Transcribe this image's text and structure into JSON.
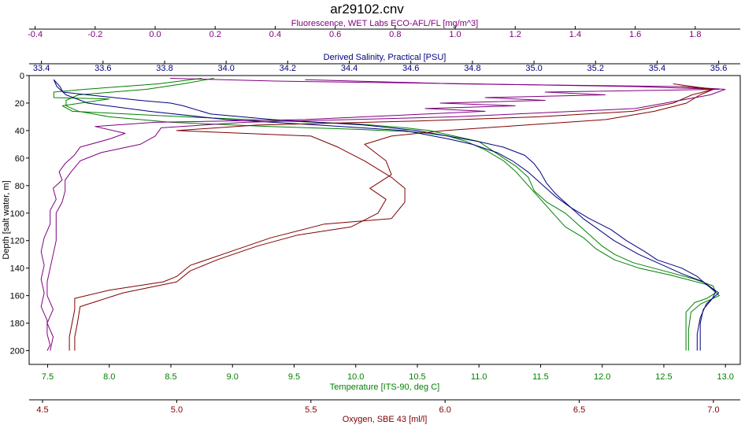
{
  "chart_data": {
    "type": "line",
    "title": "ar29102.cnv",
    "y_axis": {
      "label": "Depth [salt water, m]",
      "range": [
        0,
        210
      ],
      "ticks": [
        0,
        20,
        40,
        60,
        80,
        100,
        120,
        140,
        160,
        180,
        200
      ],
      "inverted": true,
      "color": "#000000"
    },
    "x_axes": [
      {
        "id": "fluorescence",
        "position": "top-outer",
        "label": "Fluorescence, WET Labs ECO-AFL/FL [mg/m^3]",
        "range": [
          -0.42,
          1.95
        ],
        "ticks": [
          -0.4,
          -0.2,
          0.0,
          0.2,
          0.4,
          0.6,
          0.8,
          1.0,
          1.2,
          1.4,
          1.6,
          1.8
        ],
        "tick_labels": [
          "-0.4",
          "-0.2",
          "0.0",
          "0.2",
          "0.4",
          "0.6",
          "0.8",
          "1.0",
          "1.2",
          "1.4",
          "1.6",
          "1.8"
        ],
        "color": "#800080"
      },
      {
        "id": "salinity",
        "position": "top-inner",
        "label": "Derived Salinity, Practical [PSU]",
        "range": [
          33.36,
          35.67
        ],
        "ticks": [
          33.4,
          33.6,
          33.8,
          34.0,
          34.2,
          34.4,
          34.6,
          34.8,
          35.0,
          35.2,
          35.4,
          35.6
        ],
        "tick_labels": [
          "33.4",
          "33.6",
          "33.8",
          "34.0",
          "34.2",
          "34.4",
          "34.6",
          "34.8",
          "35.0",
          "35.2",
          "35.4",
          "35.6"
        ],
        "color": "#000080"
      },
      {
        "id": "temperature",
        "position": "bottom-inner",
        "label": "Temperature [ITS-90, deg C]",
        "range": [
          7.35,
          13.12
        ],
        "ticks": [
          7.5,
          8.0,
          8.5,
          9.0,
          9.5,
          10.0,
          10.5,
          11.0,
          11.5,
          12.0,
          12.5,
          13.0
        ],
        "tick_labels": [
          "7.5",
          "8.0",
          "8.5",
          "9.0",
          "9.5",
          "10.0",
          "10.5",
          "11.0",
          "11.5",
          "12.0",
          "12.5",
          "13.0"
        ],
        "color": "#008000"
      },
      {
        "id": "oxygen",
        "position": "bottom-outer",
        "label": "Oxygen, SBE 43 [ml/l]",
        "range": [
          4.45,
          7.1
        ],
        "ticks": [
          4.5,
          5.0,
          5.5,
          6.0,
          6.5,
          7.0
        ],
        "tick_labels": [
          "4.5",
          "5.0",
          "5.5",
          "6.0",
          "6.5",
          "7.0"
        ],
        "color": "#800000"
      }
    ],
    "series": [
      {
        "axis": "temperature",
        "color": "#008000",
        "cast": "downcast",
        "points": [
          [
            8.75,
            2
          ],
          [
            8.4,
            6
          ],
          [
            7.8,
            10
          ],
          [
            7.55,
            12
          ],
          [
            7.55,
            16
          ],
          [
            8.0,
            17
          ],
          [
            7.62,
            22
          ],
          [
            7.7,
            26
          ],
          [
            8.6,
            30
          ],
          [
            9.4,
            33
          ],
          [
            10.0,
            35
          ],
          [
            10.4,
            38
          ],
          [
            10.6,
            40
          ],
          [
            10.8,
            44
          ],
          [
            11.0,
            48
          ],
          [
            11.1,
            54
          ],
          [
            11.2,
            60
          ],
          [
            11.3,
            66
          ],
          [
            11.4,
            74
          ],
          [
            11.45,
            84
          ],
          [
            11.55,
            92
          ],
          [
            11.7,
            100
          ],
          [
            11.8,
            108
          ],
          [
            11.9,
            116
          ],
          [
            12.0,
            124
          ],
          [
            12.1,
            130
          ],
          [
            12.25,
            136
          ],
          [
            12.5,
            142
          ],
          [
            12.75,
            148
          ],
          [
            12.9,
            153
          ],
          [
            12.92,
            158
          ],
          [
            12.85,
            162
          ],
          [
            12.75,
            165
          ],
          [
            12.68,
            172
          ],
          [
            12.68,
            185
          ],
          [
            12.68,
            200
          ]
        ]
      },
      {
        "axis": "temperature",
        "color": "#008000",
        "cast": "upcast",
        "points": [
          [
            12.7,
            200
          ],
          [
            12.7,
            185
          ],
          [
            12.72,
            172
          ],
          [
            12.8,
            166
          ],
          [
            12.95,
            160
          ],
          [
            12.85,
            152
          ],
          [
            12.55,
            145
          ],
          [
            12.3,
            140
          ],
          [
            12.1,
            134
          ],
          [
            11.95,
            126
          ],
          [
            11.85,
            118
          ],
          [
            11.7,
            110
          ],
          [
            11.6,
            100
          ],
          [
            11.5,
            90
          ],
          [
            11.4,
            80
          ],
          [
            11.3,
            70
          ],
          [
            11.2,
            62
          ],
          [
            11.05,
            54
          ],
          [
            10.9,
            48
          ],
          [
            10.75,
            44
          ],
          [
            10.5,
            41
          ],
          [
            10.0,
            39
          ],
          [
            9.3,
            37
          ],
          [
            8.5,
            34
          ],
          [
            8.0,
            30
          ],
          [
            7.75,
            26
          ],
          [
            7.65,
            22
          ],
          [
            7.65,
            18
          ],
          [
            7.75,
            14
          ],
          [
            8.3,
            10
          ],
          [
            8.6,
            6
          ],
          [
            8.85,
            2
          ]
        ]
      },
      {
        "axis": "salinity",
        "color": "#000080",
        "cast": "downcast",
        "points": [
          [
            33.44,
            3
          ],
          [
            33.46,
            8
          ],
          [
            33.47,
            12
          ],
          [
            33.55,
            14
          ],
          [
            33.72,
            18
          ],
          [
            33.82,
            20
          ],
          [
            33.86,
            22
          ],
          [
            33.95,
            28
          ],
          [
            34.15,
            32
          ],
          [
            34.45,
            36
          ],
          [
            34.62,
            40
          ],
          [
            34.72,
            44
          ],
          [
            34.82,
            48
          ],
          [
            34.9,
            52
          ],
          [
            34.97,
            58
          ],
          [
            35.0,
            64
          ],
          [
            35.02,
            70
          ],
          [
            35.04,
            78
          ],
          [
            35.07,
            86
          ],
          [
            35.12,
            96
          ],
          [
            35.18,
            104
          ],
          [
            35.25,
            112
          ],
          [
            35.3,
            120
          ],
          [
            35.36,
            128
          ],
          [
            35.4,
            134
          ],
          [
            35.48,
            140
          ],
          [
            35.53,
            146
          ],
          [
            35.56,
            152
          ],
          [
            35.59,
            157
          ],
          [
            35.58,
            162
          ],
          [
            35.55,
            170
          ],
          [
            35.54,
            180
          ],
          [
            35.54,
            190
          ],
          [
            35.54,
            200
          ]
        ]
      },
      {
        "axis": "salinity",
        "color": "#000080",
        "cast": "upcast",
        "points": [
          [
            35.53,
            200
          ],
          [
            35.53,
            188
          ],
          [
            35.54,
            176
          ],
          [
            35.56,
            166
          ],
          [
            35.6,
            158
          ],
          [
            35.55,
            150
          ],
          [
            35.48,
            144
          ],
          [
            35.42,
            138
          ],
          [
            35.34,
            130
          ],
          [
            35.26,
            120
          ],
          [
            35.21,
            112
          ],
          [
            35.16,
            104
          ],
          [
            35.12,
            96
          ],
          [
            35.07,
            88
          ],
          [
            35.03,
            80
          ],
          [
            34.98,
            70
          ],
          [
            34.93,
            62
          ],
          [
            34.88,
            56
          ],
          [
            34.8,
            50
          ],
          [
            34.72,
            46
          ],
          [
            34.58,
            40
          ],
          [
            34.3,
            36
          ],
          [
            34.0,
            32
          ],
          [
            33.75,
            26
          ],
          [
            33.55,
            20
          ],
          [
            33.48,
            14
          ],
          [
            33.45,
            8
          ],
          [
            33.44,
            3
          ]
        ]
      },
      {
        "axis": "fluorescence",
        "color": "#800080",
        "cast": "downcast",
        "points": [
          [
            0.05,
            2
          ],
          [
            0.4,
            4
          ],
          [
            1.05,
            6
          ],
          [
            1.6,
            8
          ],
          [
            1.88,
            10
          ],
          [
            1.3,
            12
          ],
          [
            1.5,
            14
          ],
          [
            1.1,
            16
          ],
          [
            1.3,
            18
          ],
          [
            0.95,
            20
          ],
          [
            1.2,
            22
          ],
          [
            0.9,
            24
          ],
          [
            1.1,
            26
          ],
          [
            0.7,
            30
          ],
          [
            0.5,
            32
          ],
          [
            0.0,
            34
          ],
          [
            -0.2,
            37
          ],
          [
            -0.1,
            42
          ],
          [
            -0.15,
            46
          ],
          [
            -0.25,
            52
          ],
          [
            -0.27,
            58
          ],
          [
            -0.3,
            64
          ],
          [
            -0.32,
            70
          ],
          [
            -0.31,
            76
          ],
          [
            -0.34,
            82
          ],
          [
            -0.33,
            90
          ],
          [
            -0.35,
            98
          ],
          [
            -0.35,
            108
          ],
          [
            -0.37,
            118
          ],
          [
            -0.38,
            128
          ],
          [
            -0.37,
            138
          ],
          [
            -0.38,
            148
          ],
          [
            -0.37,
            158
          ],
          [
            -0.38,
            168
          ],
          [
            -0.36,
            178
          ],
          [
            -0.36,
            188
          ],
          [
            -0.35,
            196
          ],
          [
            -0.36,
            200
          ]
        ]
      },
      {
        "axis": "fluorescence",
        "color": "#800080",
        "cast": "upcast",
        "points": [
          [
            -0.35,
            200
          ],
          [
            -0.34,
            190
          ],
          [
            -0.36,
            180
          ],
          [
            -0.34,
            170
          ],
          [
            -0.36,
            160
          ],
          [
            -0.36,
            150
          ],
          [
            -0.35,
            140
          ],
          [
            -0.34,
            130
          ],
          [
            -0.33,
            120
          ],
          [
            -0.33,
            110
          ],
          [
            -0.33,
            100
          ],
          [
            -0.31,
            92
          ],
          [
            -0.3,
            84
          ],
          [
            -0.3,
            76
          ],
          [
            -0.28,
            70
          ],
          [
            -0.25,
            62
          ],
          [
            -0.18,
            56
          ],
          [
            -0.05,
            50
          ],
          [
            0.0,
            44
          ],
          [
            0.02,
            38
          ],
          [
            0.3,
            34
          ],
          [
            1.0,
            30
          ],
          [
            1.6,
            24
          ],
          [
            1.75,
            18
          ],
          [
            1.85,
            14
          ],
          [
            1.9,
            10
          ],
          [
            1.75,
            8
          ],
          [
            1.0,
            6
          ],
          [
            0.5,
            3
          ]
        ]
      },
      {
        "axis": "oxygen",
        "color": "#800000",
        "cast": "downcast",
        "points": [
          [
            6.88,
            8
          ],
          [
            7.0,
            10
          ],
          [
            6.92,
            14
          ],
          [
            6.85,
            20
          ],
          [
            6.7,
            26
          ],
          [
            6.35,
            30
          ],
          [
            5.9,
            33
          ],
          [
            5.3,
            36
          ],
          [
            5.0,
            40
          ],
          [
            5.5,
            44
          ],
          [
            5.6,
            52
          ],
          [
            5.7,
            62
          ],
          [
            5.8,
            74
          ],
          [
            5.85,
            82
          ],
          [
            5.85,
            92
          ],
          [
            5.8,
            104
          ],
          [
            5.55,
            108
          ],
          [
            5.35,
            118
          ],
          [
            5.2,
            128
          ],
          [
            5.05,
            138
          ],
          [
            5.0,
            146
          ],
          [
            4.95,
            150
          ],
          [
            4.75,
            156
          ],
          [
            4.62,
            162
          ],
          [
            4.62,
            170
          ],
          [
            4.61,
            180
          ],
          [
            4.6,
            190
          ],
          [
            4.6,
            200
          ]
        ]
      },
      {
        "axis": "oxygen",
        "color": "#800000",
        "cast": "upcast",
        "points": [
          [
            4.62,
            200
          ],
          [
            4.62,
            190
          ],
          [
            4.63,
            180
          ],
          [
            4.64,
            168
          ],
          [
            4.8,
            158
          ],
          [
            5.0,
            150
          ],
          [
            5.05,
            142
          ],
          [
            5.15,
            134
          ],
          [
            5.3,
            124
          ],
          [
            5.45,
            116
          ],
          [
            5.65,
            110
          ],
          [
            5.75,
            100
          ],
          [
            5.78,
            90
          ],
          [
            5.72,
            82
          ],
          [
            5.8,
            72
          ],
          [
            5.78,
            62
          ],
          [
            5.7,
            50
          ],
          [
            5.8,
            44
          ],
          [
            6.0,
            40
          ],
          [
            6.3,
            36
          ],
          [
            6.6,
            32
          ],
          [
            6.78,
            26
          ],
          [
            6.9,
            20
          ],
          [
            6.95,
            14
          ],
          [
            7.0,
            10
          ],
          [
            6.85,
            6
          ]
        ]
      }
    ]
  }
}
